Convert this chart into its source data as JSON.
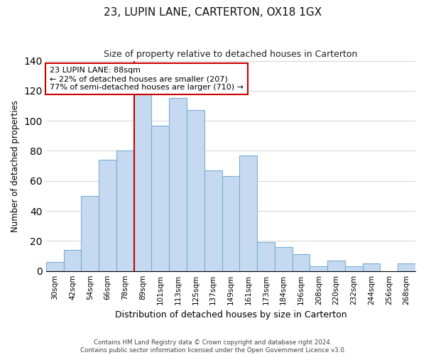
{
  "title": "23, LUPIN LANE, CARTERTON, OX18 1GX",
  "subtitle": "Size of property relative to detached houses in Carterton",
  "xlabel": "Distribution of detached houses by size in Carterton",
  "ylabel": "Number of detached properties",
  "bar_color": "#c5d9f1",
  "bar_edge_color": "#7bafd4",
  "highlight_color": "#cc0000",
  "categories": [
    "30sqm",
    "42sqm",
    "54sqm",
    "66sqm",
    "78sqm",
    "89sqm",
    "101sqm",
    "113sqm",
    "125sqm",
    "137sqm",
    "149sqm",
    "161sqm",
    "173sqm",
    "184sqm",
    "196sqm",
    "208sqm",
    "220sqm",
    "232sqm",
    "244sqm",
    "256sqm",
    "268sqm"
  ],
  "values": [
    6,
    14,
    50,
    74,
    80,
    118,
    97,
    115,
    107,
    67,
    63,
    77,
    19,
    16,
    11,
    3,
    7,
    3,
    5,
    0,
    5
  ],
  "annotation_title": "23 LUPIN LANE: 88sqm",
  "annotation_line1": "← 22% of detached houses are smaller (207)",
  "annotation_line2": "77% of semi-detached houses are larger (710) →",
  "ylim": [
    0,
    140
  ],
  "yticks": [
    0,
    20,
    40,
    60,
    80,
    100,
    120,
    140
  ],
  "footer1": "Contains HM Land Registry data © Crown copyright and database right 2024.",
  "footer2": "Contains public sector information licensed under the Open Government Licence v3.0."
}
